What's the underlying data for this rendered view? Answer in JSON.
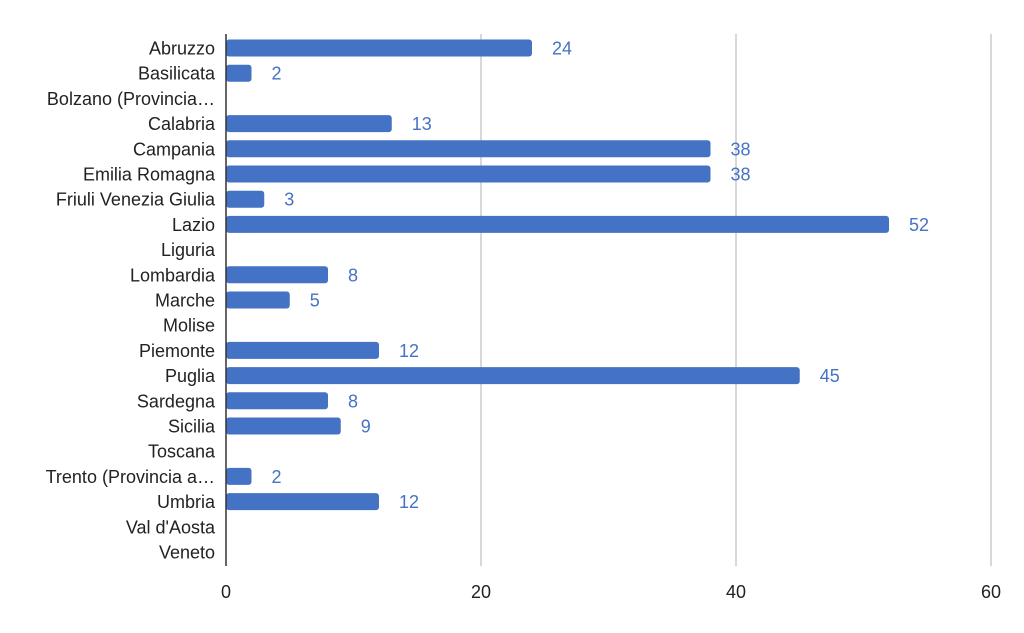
{
  "chart_data": {
    "type": "bar",
    "orientation": "horizontal",
    "categories": [
      "Abruzzo",
      "Basilicata",
      "Bolzano (Provincia…",
      "Calabria",
      "Campania",
      "Emilia Romagna",
      "Friuli Venezia Giulia",
      "Lazio",
      "Liguria",
      "Lombardia",
      "Marche",
      "Molise",
      "Piemonte",
      "Puglia",
      "Sardegna",
      "Sicilia",
      "Toscana",
      "Trento (Provincia a…",
      "Umbria",
      "Val d'Aosta",
      "Veneto"
    ],
    "values": [
      24,
      2,
      null,
      13,
      38,
      38,
      3,
      52,
      null,
      8,
      5,
      null,
      12,
      45,
      8,
      9,
      null,
      2,
      12,
      null,
      null
    ],
    "xlim": [
      0,
      60
    ],
    "xticks": [
      "0",
      "20",
      "40",
      "60"
    ],
    "grid": true,
    "data_labels": true,
    "title": "",
    "xlabel": "",
    "ylabel": "",
    "colors": {
      "bar": "#4472c4",
      "label": "#4472c4"
    }
  }
}
